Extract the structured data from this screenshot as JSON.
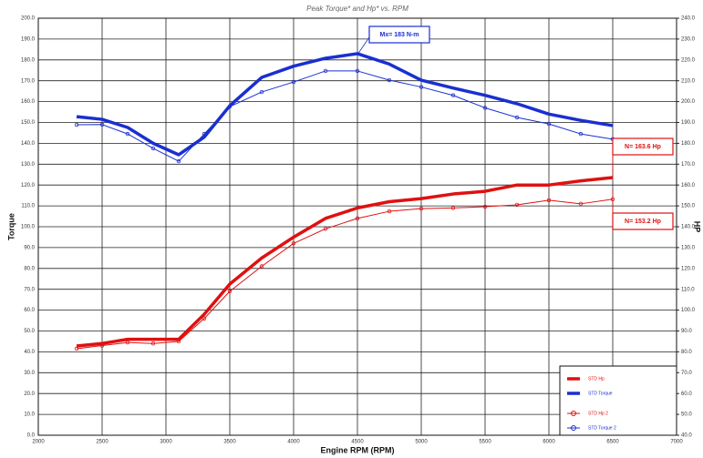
{
  "chart_data": {
    "type": "line",
    "title": "Peak Torque* and Hp* vs. RPM",
    "x_label": "Engine RPM (RPM)",
    "y_label": "Torque",
    "y2_label": "HP",
    "x": [
      2300,
      2500,
      2700,
      2900,
      3100,
      3300,
      3500,
      3750,
      4000,
      4250,
      4500,
      4750,
      5000,
      5250,
      5500,
      5750,
      6000,
      6250,
      6500
    ],
    "series": [
      {
        "name": "STD Hp",
        "color": "#e01010",
        "width": 3.5,
        "axis": "y2",
        "values": [
          82.8,
          84,
          86,
          86,
          86,
          98,
          112.5,
          125,
          135,
          144,
          149,
          152,
          153.5,
          155.7,
          157,
          160,
          160,
          162,
          163.6
        ]
      },
      {
        "name": "STD Torque",
        "color": "#1a2fd0",
        "width": 3.5,
        "values": [
          152.8,
          151.5,
          147.6,
          140,
          134.5,
          143,
          158,
          171.6,
          177,
          180.8,
          183,
          178,
          170.3,
          166.5,
          163,
          159,
          154,
          151,
          148.5
        ]
      },
      {
        "name": "STD Hp 2",
        "color": "#e01010",
        "width": 1,
        "markers": true,
        "axis": "y2",
        "values": [
          81.5,
          83,
          84.5,
          84,
          85,
          96,
          109,
          121,
          132,
          139,
          144,
          147.4,
          148.7,
          149,
          149.6,
          150.5,
          152.7,
          151,
          153.2
        ]
      },
      {
        "name": "STD Torque 2",
        "color": "#1a2fd0",
        "width": 1,
        "markers": true,
        "values": [
          148.9,
          149,
          144.5,
          137.6,
          131.4,
          144.5,
          157.6,
          164.6,
          169.4,
          174.7,
          174.7,
          170.3,
          167,
          163,
          157,
          152.4,
          149.3,
          144.5,
          142
        ]
      }
    ],
    "annotations": [
      {
        "text": "Mx= 183 N-m",
        "color": "#1a2fd0"
      },
      {
        "text": "N= 163.6 Hp",
        "color": "#e01010"
      },
      {
        "text": "N= 153.2 Hp",
        "color": "#e01010"
      }
    ],
    "xlim": [
      2000,
      7000
    ],
    "xticks": [
      2000,
      2500,
      3000,
      3500,
      4000,
      4500,
      5000,
      5500,
      6000,
      6500,
      7000
    ],
    "ylim": [
      0,
      200
    ],
    "yticks": [
      {
        "value": 0,
        "label": "0.0"
      },
      {
        "value": 10,
        "label": "10.0"
      },
      {
        "value": 20,
        "label": "20.0"
      },
      {
        "value": 30,
        "label": "30.0"
      },
      {
        "value": 40,
        "label": "40.0"
      },
      {
        "value": 50,
        "label": "50.0"
      },
      {
        "value": 60,
        "label": "60.0"
      },
      {
        "value": 70,
        "label": "70.0"
      },
      {
        "value": 80,
        "label": "80.0"
      },
      {
        "value": 90,
        "label": "90.0"
      },
      {
        "value": 100,
        "label": "100.0"
      },
      {
        "value": 110,
        "label": "110.0"
      },
      {
        "value": 120,
        "label": "120.0"
      },
      {
        "value": 130,
        "label": "130.0"
      },
      {
        "value": 140,
        "label": "140.0"
      },
      {
        "value": 150,
        "label": "150.0"
      },
      {
        "value": 160,
        "label": "160.0"
      },
      {
        "value": 170,
        "label": "170.0"
      },
      {
        "value": 180,
        "label": "180.0"
      },
      {
        "value": 190,
        "label": "190.0"
      },
      {
        "value": 200,
        "label": "200.0"
      }
    ],
    "y2lim": [
      40,
      240
    ],
    "y2ticks": [
      {
        "value": 40,
        "label": "40.0"
      },
      {
        "value": 50,
        "label": "50.0"
      },
      {
        "value": 60,
        "label": "60.0"
      },
      {
        "value": 70,
        "label": "70.0"
      },
      {
        "value": 80,
        "label": "80.0"
      },
      {
        "value": 90,
        "label": "90.0"
      },
      {
        "value": 100,
        "label": "100.0"
      },
      {
        "value": 110,
        "label": "110.0"
      },
      {
        "value": 120,
        "label": "120.0"
      },
      {
        "value": 130,
        "label": "130.0"
      },
      {
        "value": 140,
        "label": "140.0"
      },
      {
        "value": 150,
        "label": "150.0"
      },
      {
        "value": 160,
        "label": "160.0"
      },
      {
        "value": 170,
        "label": "170.0"
      },
      {
        "value": 180,
        "label": "180.0"
      },
      {
        "value": 190,
        "label": "190.0"
      },
      {
        "value": 200,
        "label": "200.0"
      },
      {
        "value": 210,
        "label": "210.0"
      },
      {
        "value": 220,
        "label": "220.0"
      },
      {
        "value": 230,
        "label": "230.0"
      },
      {
        "value": 240,
        "label": "240.0"
      }
    ],
    "grid": true
  }
}
